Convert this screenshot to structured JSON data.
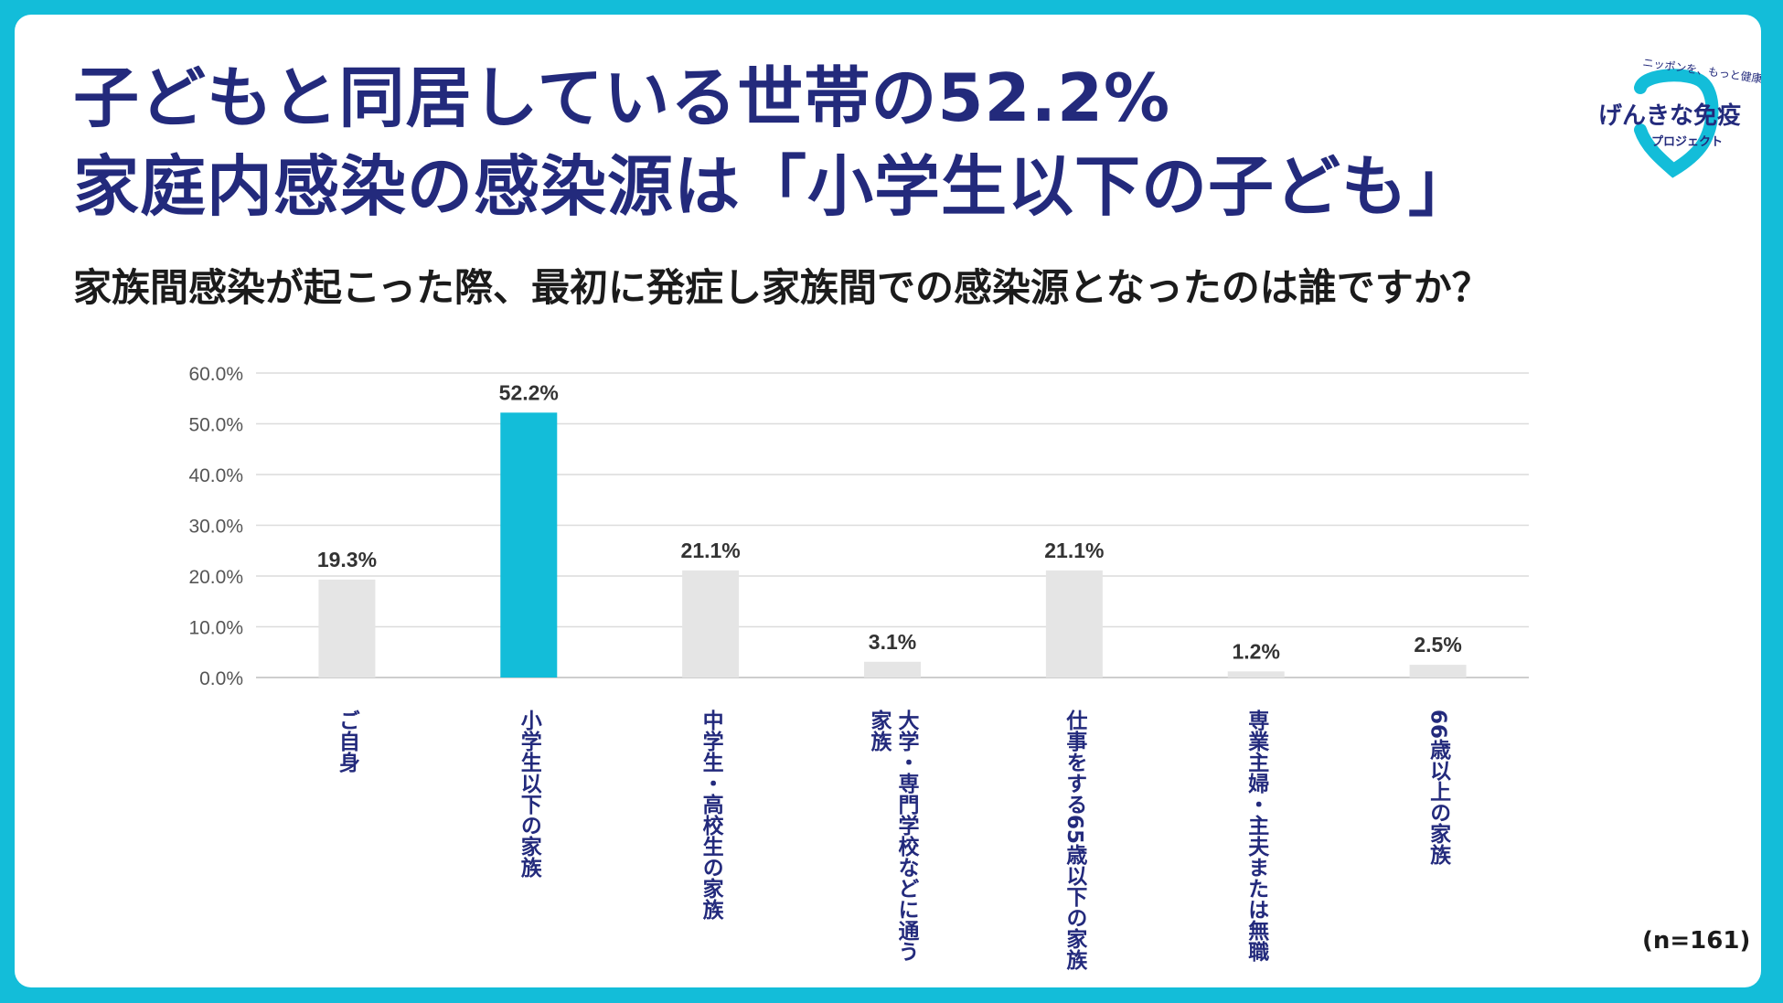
{
  "headline": {
    "line1": "子どもと同居している世帯の52.2%",
    "line2": "家庭内感染の感染源は「小学生以下の子ども」"
  },
  "question": "家族間感染が起こった際、最初に発症し家族間での感染源となったのは誰ですか？",
  "logo": {
    "tagline": "ニッポンを、もっと健康に。",
    "name": "げんきな免疫",
    "sub": "プロジェクト"
  },
  "sample_size": "(n=161)",
  "colors": {
    "background": "#13bdd9",
    "headline": "#232a7c",
    "highlight_bar": "#13bdd9",
    "default_bar": "#e5e5e5",
    "category_label": "#232a7c"
  },
  "chart_data": {
    "type": "bar",
    "categories": [
      "ご自身",
      "小学生以下の家族",
      "中学生・高校生の家族",
      "大学・専門学校などに通う家族",
      "仕事をする65歳以下の家族",
      "専業主婦・主夫または無職",
      "66歳以上の家族"
    ],
    "category_lines": [
      [
        "ご自身"
      ],
      [
        "小学生以下の家族"
      ],
      [
        "中学生・高校生の家族"
      ],
      [
        "大学・専門学校などに通う",
        "家族"
      ],
      [
        "仕事をする65歳以下の家族"
      ],
      [
        "専業主婦・主夫または無職"
      ],
      [
        "66歳以上の家族"
      ]
    ],
    "values": [
      19.3,
      52.2,
      21.1,
      3.1,
      21.1,
      1.2,
      2.5
    ],
    "value_labels": [
      "19.3%",
      "52.2%",
      "21.1%",
      "3.1%",
      "21.1%",
      "1.2%",
      "2.5%"
    ],
    "highlight_index": 1,
    "ylim": [
      0,
      60
    ],
    "yticks": [
      0,
      10,
      20,
      30,
      40,
      50,
      60
    ],
    "ytick_labels": [
      "0.0%",
      "10.0%",
      "20.0%",
      "30.0%",
      "40.0%",
      "50.0%",
      "60.0%"
    ],
    "grid": true
  }
}
